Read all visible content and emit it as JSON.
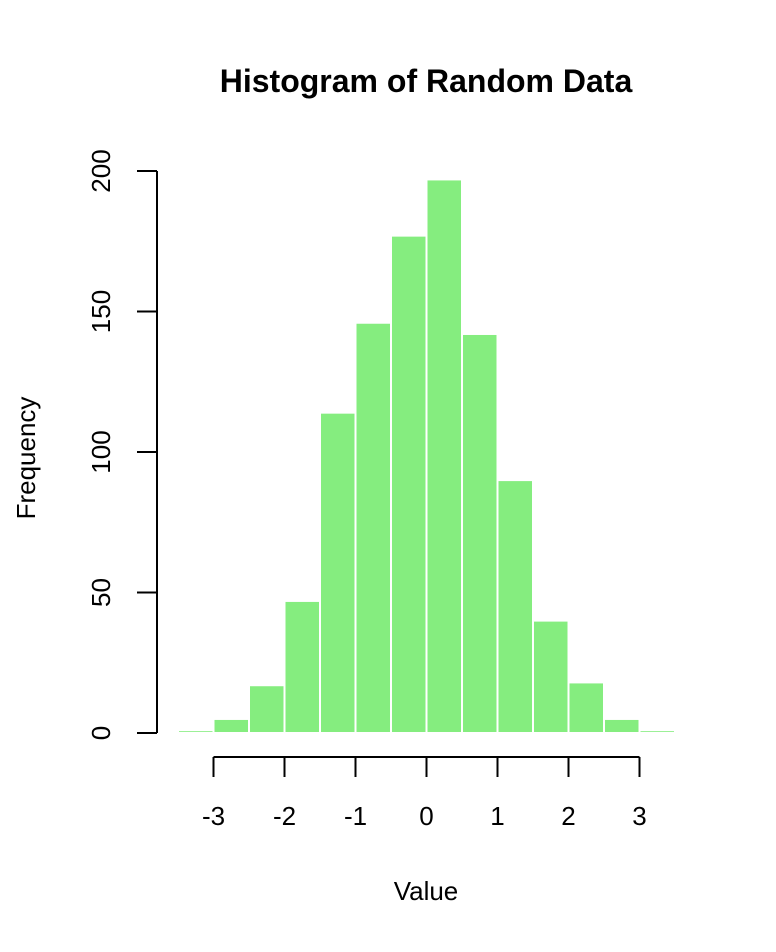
{
  "chart_data": {
    "type": "bar",
    "title": "Histogram of Random Data",
    "xlabel": "Value",
    "ylabel": "Frequency",
    "bar_color": "#85ED7F",
    "bin_width": 0.5,
    "bins": [
      {
        "x0": -3.5,
        "x1": -3.0,
        "count": 1
      },
      {
        "x0": -3.0,
        "x1": -2.5,
        "count": 5
      },
      {
        "x0": -2.5,
        "x1": -2.0,
        "count": 17
      },
      {
        "x0": -2.0,
        "x1": -1.5,
        "count": 47
      },
      {
        "x0": -1.5,
        "x1": -1.0,
        "count": 114
      },
      {
        "x0": -1.0,
        "x1": -0.5,
        "count": 146
      },
      {
        "x0": -0.5,
        "x1": 0.0,
        "count": 177
      },
      {
        "x0": 0.0,
        "x1": 0.5,
        "count": 197
      },
      {
        "x0": 0.5,
        "x1": 1.0,
        "count": 142
      },
      {
        "x0": 1.0,
        "x1": 1.5,
        "count": 90
      },
      {
        "x0": 1.5,
        "x1": 2.0,
        "count": 40
      },
      {
        "x0": 2.0,
        "x1": 2.5,
        "count": 18
      },
      {
        "x0": 2.5,
        "x1": 3.0,
        "count": 5
      },
      {
        "x0": 3.0,
        "x1": 3.5,
        "count": 1
      }
    ],
    "xlim": [
      -3.5,
      3.5
    ],
    "ylim": [
      0,
      200
    ],
    "x_ticks": [
      -3,
      -2,
      -1,
      0,
      1,
      2,
      3
    ],
    "x_tick_labels": [
      "-3",
      "-2",
      "-1",
      "0",
      "1",
      "2",
      "3"
    ],
    "y_ticks": [
      0,
      50,
      100,
      150,
      200
    ],
    "y_tick_labels": [
      "0",
      "50",
      "100",
      "150",
      "200"
    ],
    "grid": false
  }
}
